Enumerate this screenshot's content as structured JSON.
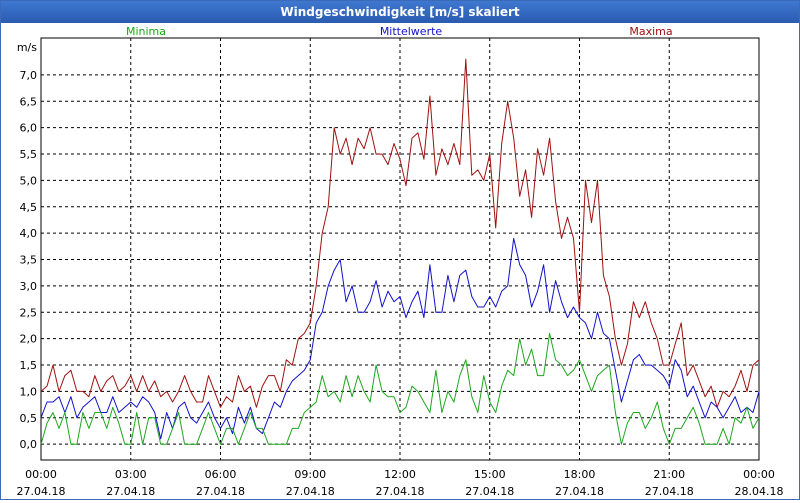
{
  "window": {
    "title": "Windgeschwindigkeit [m/s] skaliert"
  },
  "colors": {
    "minima": "#1fa61f",
    "mittel": "#1212c8",
    "maxima": "#a01010",
    "grid": "#000000",
    "axis": "#000000"
  },
  "chart_data": {
    "type": "line",
    "title": "Windgeschwindigkeit [m/s] skaliert",
    "ylabel": "m/s",
    "ylim": [
      -0.3,
      7.7
    ],
    "yticks": [
      {
        "v": 0.0,
        "label": "0,0"
      },
      {
        "v": 0.5,
        "label": "0,5"
      },
      {
        "v": 1.0,
        "label": "1,0"
      },
      {
        "v": 1.5,
        "label": "1,5"
      },
      {
        "v": 2.0,
        "label": "2,0"
      },
      {
        "v": 2.5,
        "label": "2,5"
      },
      {
        "v": 3.0,
        "label": "3,0"
      },
      {
        "v": 3.5,
        "label": "3,5"
      },
      {
        "v": 4.0,
        "label": "4,0"
      },
      {
        "v": 4.5,
        "label": "4,5"
      },
      {
        "v": 5.0,
        "label": "5,0"
      },
      {
        "v": 5.5,
        "label": "5,5"
      },
      {
        "v": 6.0,
        "label": "6,0"
      },
      {
        "v": 6.5,
        "label": "6,5"
      },
      {
        "v": 7.0,
        "label": "7,0"
      }
    ],
    "xlim": [
      0,
      24
    ],
    "xticks": [
      {
        "h": 0,
        "time": "00:00",
        "date": "27.04.18"
      },
      {
        "h": 3,
        "time": "03:00",
        "date": "27.04.18"
      },
      {
        "h": 6,
        "time": "06:00",
        "date": "27.04.18"
      },
      {
        "h": 9,
        "time": "09:00",
        "date": "27.04.18"
      },
      {
        "h": 12,
        "time": "12:00",
        "date": "27.04.18"
      },
      {
        "h": 15,
        "time": "15:00",
        "date": "27.04.18"
      },
      {
        "h": 18,
        "time": "18:00",
        "date": "27.04.18"
      },
      {
        "h": 21,
        "time": "21:00",
        "date": "27.04.18"
      },
      {
        "h": 24,
        "time": "00:00",
        "date": "28.04.18"
      }
    ],
    "legend": [
      {
        "name": "Minima",
        "color": "#1fa61f",
        "placement": "top-left"
      },
      {
        "name": "Mittelwerte",
        "color": "#1212c8",
        "placement": "top-center"
      },
      {
        "name": "Maxima",
        "color": "#a01010",
        "placement": "top-right"
      }
    ],
    "series": [
      {
        "name": "Maxima",
        "color": "#a01010",
        "x": [
          0,
          0.2,
          0.4,
          0.6,
          0.8,
          1.0,
          1.2,
          1.4,
          1.6,
          1.8,
          2.0,
          2.2,
          2.4,
          2.6,
          2.8,
          3.0,
          3.2,
          3.4,
          3.6,
          3.8,
          4.0,
          4.2,
          4.4,
          4.6,
          4.8,
          5.0,
          5.2,
          5.4,
          5.6,
          5.8,
          6.0,
          6.2,
          6.4,
          6.6,
          6.8,
          7.0,
          7.2,
          7.4,
          7.6,
          7.8,
          8.0,
          8.2,
          8.4,
          8.6,
          8.8,
          9.0,
          9.2,
          9.4,
          9.6,
          9.8,
          10.0,
          10.2,
          10.4,
          10.6,
          10.8,
          11.0,
          11.2,
          11.4,
          11.6,
          11.8,
          12.0,
          12.2,
          12.4,
          12.6,
          12.8,
          13.0,
          13.2,
          13.4,
          13.6,
          13.8,
          14.0,
          14.2,
          14.4,
          14.6,
          14.8,
          15.0,
          15.2,
          15.4,
          15.6,
          15.8,
          16.0,
          16.2,
          16.4,
          16.6,
          16.8,
          17.0,
          17.2,
          17.4,
          17.6,
          17.8,
          18.0,
          18.2,
          18.4,
          18.6,
          18.8,
          19.0,
          19.2,
          19.4,
          19.6,
          19.8,
          20.0,
          20.2,
          20.4,
          20.6,
          20.8,
          21.0,
          21.2,
          21.4,
          21.6,
          21.8,
          22.0,
          22.2,
          22.4,
          22.6,
          22.8,
          23.0,
          23.2,
          23.4,
          23.6,
          23.8,
          24.0
        ],
        "y": [
          1.0,
          1.1,
          1.5,
          1.0,
          1.3,
          1.4,
          1.0,
          1.0,
          0.9,
          1.3,
          1.0,
          1.2,
          1.3,
          1.0,
          1.1,
          1.3,
          1.0,
          1.3,
          1.0,
          1.2,
          0.9,
          1.0,
          0.8,
          1.0,
          1.3,
          1.0,
          0.8,
          0.8,
          1.3,
          1.0,
          0.7,
          0.9,
          0.8,
          1.3,
          1.0,
          1.1,
          0.7,
          1.1,
          1.3,
          1.3,
          1.0,
          1.6,
          1.5,
          2.0,
          2.1,
          2.3,
          3.0,
          4.0,
          4.5,
          6.0,
          5.5,
          5.8,
          5.3,
          5.8,
          5.6,
          6.0,
          5.5,
          5.5,
          5.3,
          5.7,
          5.4,
          4.9,
          5.8,
          5.9,
          5.4,
          6.6,
          5.1,
          5.6,
          5.3,
          5.7,
          5.3,
          7.3,
          5.1,
          5.2,
          5.0,
          5.5,
          4.1,
          5.7,
          6.5,
          5.8,
          4.7,
          5.2,
          4.3,
          5.6,
          5.1,
          5.8,
          4.6,
          3.9,
          4.3,
          3.9,
          2.5,
          5.0,
          4.2,
          5.0,
          3.2,
          2.8,
          2.0,
          1.5,
          1.9,
          2.7,
          2.4,
          2.7,
          2.3,
          2.0,
          1.5,
          1.5,
          1.9,
          2.3,
          1.3,
          1.5,
          1.2,
          0.9,
          1.1,
          0.7,
          1.0,
          0.9,
          1.1,
          1.4,
          1.0,
          1.5,
          1.6
        ]
      },
      {
        "name": "Mittelwerte",
        "color": "#1212c8",
        "x": [
          0,
          0.2,
          0.4,
          0.6,
          0.8,
          1.0,
          1.2,
          1.4,
          1.6,
          1.8,
          2.0,
          2.2,
          2.4,
          2.6,
          2.8,
          3.0,
          3.2,
          3.4,
          3.6,
          3.8,
          4.0,
          4.2,
          4.4,
          4.6,
          4.8,
          5.0,
          5.2,
          5.4,
          5.6,
          5.8,
          6.0,
          6.2,
          6.4,
          6.6,
          6.8,
          7.0,
          7.2,
          7.4,
          7.6,
          7.8,
          8.0,
          8.2,
          8.4,
          8.6,
          8.8,
          9.0,
          9.2,
          9.4,
          9.6,
          9.8,
          10.0,
          10.2,
          10.4,
          10.6,
          10.8,
          11.0,
          11.2,
          11.4,
          11.6,
          11.8,
          12.0,
          12.2,
          12.4,
          12.6,
          12.8,
          13.0,
          13.2,
          13.4,
          13.6,
          13.8,
          14.0,
          14.2,
          14.4,
          14.6,
          14.8,
          15.0,
          15.2,
          15.4,
          15.6,
          15.8,
          16.0,
          16.2,
          16.4,
          16.6,
          16.8,
          17.0,
          17.2,
          17.4,
          17.6,
          17.8,
          18.0,
          18.2,
          18.4,
          18.6,
          18.8,
          19.0,
          19.2,
          19.4,
          19.6,
          19.8,
          20.0,
          20.2,
          20.4,
          20.6,
          20.8,
          21.0,
          21.2,
          21.4,
          21.6,
          21.8,
          22.0,
          22.2,
          22.4,
          22.6,
          22.8,
          23.0,
          23.2,
          23.4,
          23.6,
          23.8,
          24.0
        ],
        "y": [
          0.5,
          0.8,
          0.8,
          0.9,
          0.6,
          0.9,
          0.5,
          0.7,
          0.8,
          0.9,
          0.6,
          0.6,
          0.9,
          0.6,
          0.7,
          0.8,
          0.7,
          0.9,
          0.8,
          0.6,
          0.1,
          0.6,
          0.3,
          0.7,
          0.8,
          0.5,
          0.4,
          0.6,
          0.8,
          0.5,
          0.3,
          0.5,
          0.2,
          0.7,
          0.4,
          0.7,
          0.3,
          0.2,
          0.5,
          0.8,
          0.7,
          1.0,
          1.2,
          1.3,
          1.4,
          1.6,
          2.3,
          2.5,
          3.0,
          3.3,
          3.5,
          2.7,
          3.0,
          2.5,
          2.5,
          2.7,
          3.1,
          2.6,
          2.9,
          2.7,
          2.8,
          2.4,
          2.7,
          2.9,
          2.4,
          3.4,
          2.5,
          2.5,
          3.2,
          2.7,
          3.2,
          3.3,
          2.8,
          2.6,
          2.6,
          2.8,
          2.6,
          2.9,
          3.0,
          3.9,
          3.4,
          3.2,
          2.6,
          2.9,
          3.4,
          2.5,
          3.1,
          2.7,
          2.4,
          2.6,
          2.4,
          2.3,
          2.0,
          2.5,
          2.1,
          2.0,
          1.4,
          0.8,
          1.2,
          1.6,
          1.7,
          1.5,
          1.5,
          1.4,
          1.3,
          1.1,
          1.6,
          1.4,
          0.9,
          1.1,
          0.8,
          0.5,
          0.8,
          0.7,
          0.5,
          0.7,
          0.9,
          0.6,
          0.7,
          0.6,
          1.0
        ]
      },
      {
        "name": "Minima",
        "color": "#1fa61f",
        "x": [
          0,
          0.2,
          0.4,
          0.6,
          0.8,
          1.0,
          1.2,
          1.4,
          1.6,
          1.8,
          2.0,
          2.2,
          2.4,
          2.6,
          2.8,
          3.0,
          3.2,
          3.4,
          3.6,
          3.8,
          4.0,
          4.2,
          4.4,
          4.6,
          4.8,
          5.0,
          5.2,
          5.4,
          5.6,
          5.8,
          6.0,
          6.2,
          6.4,
          6.6,
          6.8,
          7.0,
          7.2,
          7.4,
          7.6,
          7.8,
          8.0,
          8.2,
          8.4,
          8.6,
          8.8,
          9.0,
          9.2,
          9.4,
          9.6,
          9.8,
          10.0,
          10.2,
          10.4,
          10.6,
          10.8,
          11.0,
          11.2,
          11.4,
          11.6,
          11.8,
          12.0,
          12.2,
          12.4,
          12.6,
          12.8,
          13.0,
          13.2,
          13.4,
          13.6,
          13.8,
          14.0,
          14.2,
          14.4,
          14.6,
          14.8,
          15.0,
          15.2,
          15.4,
          15.6,
          15.8,
          16.0,
          16.2,
          16.4,
          16.6,
          16.8,
          17.0,
          17.2,
          17.4,
          17.6,
          17.8,
          18.0,
          18.2,
          18.4,
          18.6,
          18.8,
          19.0,
          19.2,
          19.4,
          19.6,
          19.8,
          20.0,
          20.2,
          20.4,
          20.6,
          20.8,
          21.0,
          21.2,
          21.4,
          21.6,
          21.8,
          22.0,
          22.2,
          22.4,
          22.6,
          22.8,
          23.0,
          23.2,
          23.4,
          23.6,
          23.8,
          24.0
        ],
        "y": [
          0.0,
          0.4,
          0.6,
          0.3,
          0.6,
          0.0,
          0.0,
          0.6,
          0.3,
          0.6,
          0.6,
          0.3,
          0.7,
          0.4,
          0.0,
          0.0,
          0.6,
          0.0,
          0.5,
          0.5,
          0.0,
          0.0,
          0.3,
          0.6,
          0.0,
          0.0,
          0.0,
          0.3,
          0.6,
          0.3,
          0.0,
          0.3,
          0.3,
          0.0,
          0.3,
          0.6,
          0.3,
          0.3,
          0.0,
          0.0,
          0.0,
          0.0,
          0.3,
          0.3,
          0.6,
          0.7,
          0.8,
          1.3,
          0.9,
          1.0,
          0.8,
          1.3,
          0.9,
          1.3,
          1.0,
          0.8,
          1.5,
          1.0,
          0.9,
          0.9,
          0.6,
          0.7,
          1.1,
          1.0,
          0.8,
          0.6,
          1.4,
          0.6,
          1.0,
          0.8,
          1.3,
          1.6,
          0.9,
          0.6,
          1.3,
          0.8,
          0.6,
          1.1,
          1.4,
          1.3,
          2.0,
          1.5,
          1.8,
          1.3,
          1.3,
          2.1,
          1.6,
          1.5,
          1.3,
          1.4,
          1.6,
          1.3,
          1.0,
          1.3,
          1.4,
          1.5,
          0.6,
          0.0,
          0.4,
          0.6,
          0.6,
          0.3,
          0.5,
          0.8,
          0.3,
          0.0,
          0.3,
          0.3,
          0.5,
          0.7,
          0.4,
          0.0,
          0.0,
          0.0,
          0.3,
          0.0,
          0.5,
          0.4,
          0.7,
          0.3,
          0.5
        ]
      }
    ]
  }
}
